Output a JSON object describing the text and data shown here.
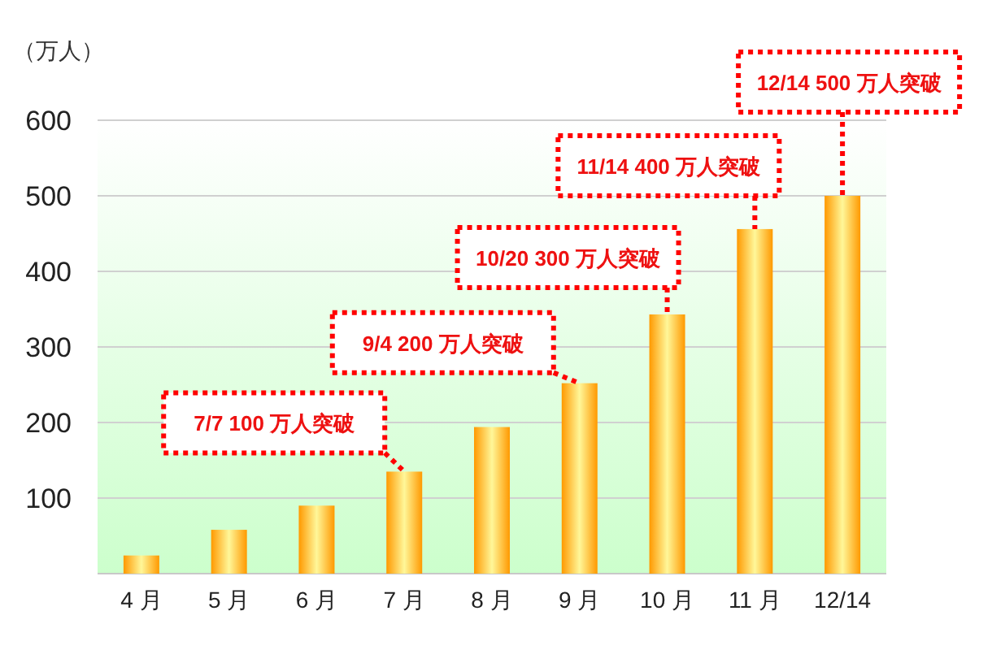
{
  "chart_data": {
    "type": "bar",
    "ylabel": "（万人）",
    "categories": [
      "4 月",
      "5 月",
      "6 月",
      "7 月",
      "8 月",
      "9 月",
      "10 月",
      "11 月",
      "12/14"
    ],
    "values": [
      24,
      58,
      90,
      135,
      194,
      252,
      343,
      456,
      500
    ],
    "color": "#ff9900",
    "ylim": [
      0,
      600
    ],
    "yticks": [
      100,
      200,
      300,
      400,
      500,
      600
    ],
    "grid": "y",
    "annotations": [
      {
        "text": "7/7 100 万人突破",
        "x": "7 月",
        "y": 135
      },
      {
        "text": "9/4 200 万人突破",
        "x": "9 月",
        "y": 252
      },
      {
        "text": "10/20 300 万人突破",
        "x": "10 月",
        "y": 343
      },
      {
        "text": "11/14 400 万人突破",
        "x": "11 月",
        "y": 456
      },
      {
        "text": "12/14 500 万人突破",
        "x": "12/14",
        "y": 500
      }
    ]
  }
}
